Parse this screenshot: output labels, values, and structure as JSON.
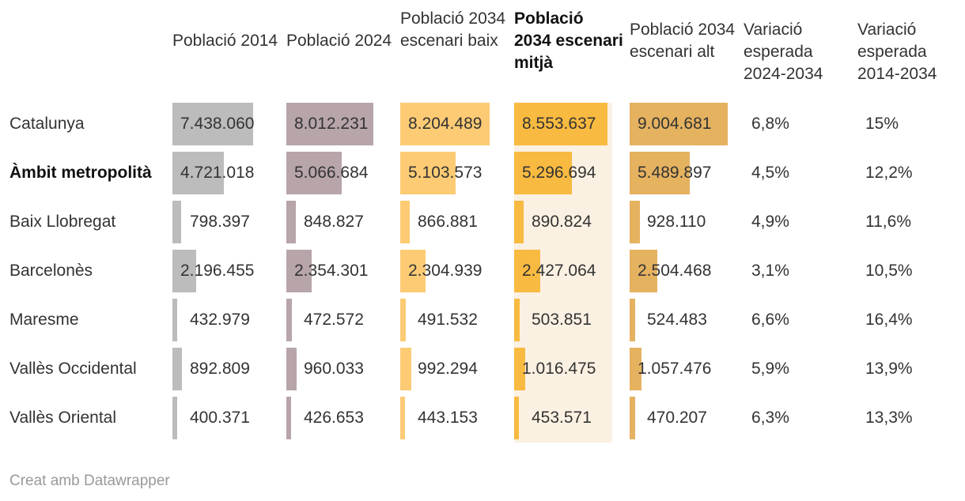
{
  "chart_data": {
    "type": "table",
    "columns": [
      {
        "label": "Població 2014",
        "bold": false,
        "color": "#bcbcbc"
      },
      {
        "label": "Població 2024",
        "bold": false,
        "color": "#b7a5aa"
      },
      {
        "label": "Població 2034 escenari baix",
        "bold": false,
        "color": "#fccb74"
      },
      {
        "label": "Població 2034 escenari mitjà",
        "bold": true,
        "color": "#f8ba40"
      },
      {
        "label": "Població 2034 escenari alt",
        "bold": false,
        "color": "#e5b260"
      },
      {
        "label": "Variació esperada 2024-2034",
        "bold": false
      },
      {
        "label": "Variació esperada 2014-2034",
        "bold": false
      }
    ],
    "rows": [
      {
        "name": "Catalunya",
        "bold": false,
        "values": [
          "7.438.060",
          "8.012.231",
          "8.204.489",
          "8.553.637",
          "9.004.681"
        ],
        "numbers": [
          7438060,
          8012231,
          8204489,
          8553637,
          9004681
        ],
        "var_2024_2034": "6,8%",
        "var_2014_2034": "15%"
      },
      {
        "name": "Àmbit metropolità",
        "bold": true,
        "values": [
          "4.721.018",
          "5.066.684",
          "5.103.573",
          "5.296.694",
          "5.489.897"
        ],
        "numbers": [
          4721018,
          5066684,
          5103573,
          5296694,
          5489897
        ],
        "var_2024_2034": "4,5%",
        "var_2014_2034": "12,2%"
      },
      {
        "name": "Baix Llobregat",
        "bold": false,
        "values": [
          "798.397",
          "848.827",
          "866.881",
          "890.824",
          "928.110"
        ],
        "numbers": [
          798397,
          848827,
          866881,
          890824,
          928110
        ],
        "var_2024_2034": "4,9%",
        "var_2014_2034": "11,6%"
      },
      {
        "name": "Barcelonès",
        "bold": false,
        "values": [
          "2.196.455",
          "2.354.301",
          "2.304.939",
          "2.427.064",
          "2.504.468"
        ],
        "numbers": [
          2196455,
          2354301,
          2304939,
          2427064,
          2504468
        ],
        "var_2024_2034": "3,1%",
        "var_2014_2034": "10,5%"
      },
      {
        "name": "Maresme",
        "bold": false,
        "values": [
          "432.979",
          "472.572",
          "491.532",
          "503.851",
          "524.483"
        ],
        "numbers": [
          432979,
          472572,
          491532,
          503851,
          524483
        ],
        "var_2024_2034": "6,6%",
        "var_2014_2034": "16,4%"
      },
      {
        "name": "Vallès Occidental",
        "bold": false,
        "values": [
          "892.809",
          "960.033",
          "992.294",
          "1.016.475",
          "1.057.476"
        ],
        "numbers": [
          892809,
          960033,
          992294,
          1016475,
          1057476
        ],
        "var_2024_2034": "5,9%",
        "var_2014_2034": "13,9%"
      },
      {
        "name": "Vallès Oriental",
        "bold": false,
        "values": [
          "400.371",
          "426.653",
          "443.153",
          "453.571",
          "470.207"
        ],
        "numbers": [
          400371,
          426653,
          443153,
          453571,
          470207
        ],
        "var_2024_2034": "6,3%",
        "var_2014_2034": "13,3%"
      }
    ],
    "bar_max": 9004681,
    "highlight_color": "#fbf1e2"
  },
  "footer": "Creat amb Datawrapper"
}
